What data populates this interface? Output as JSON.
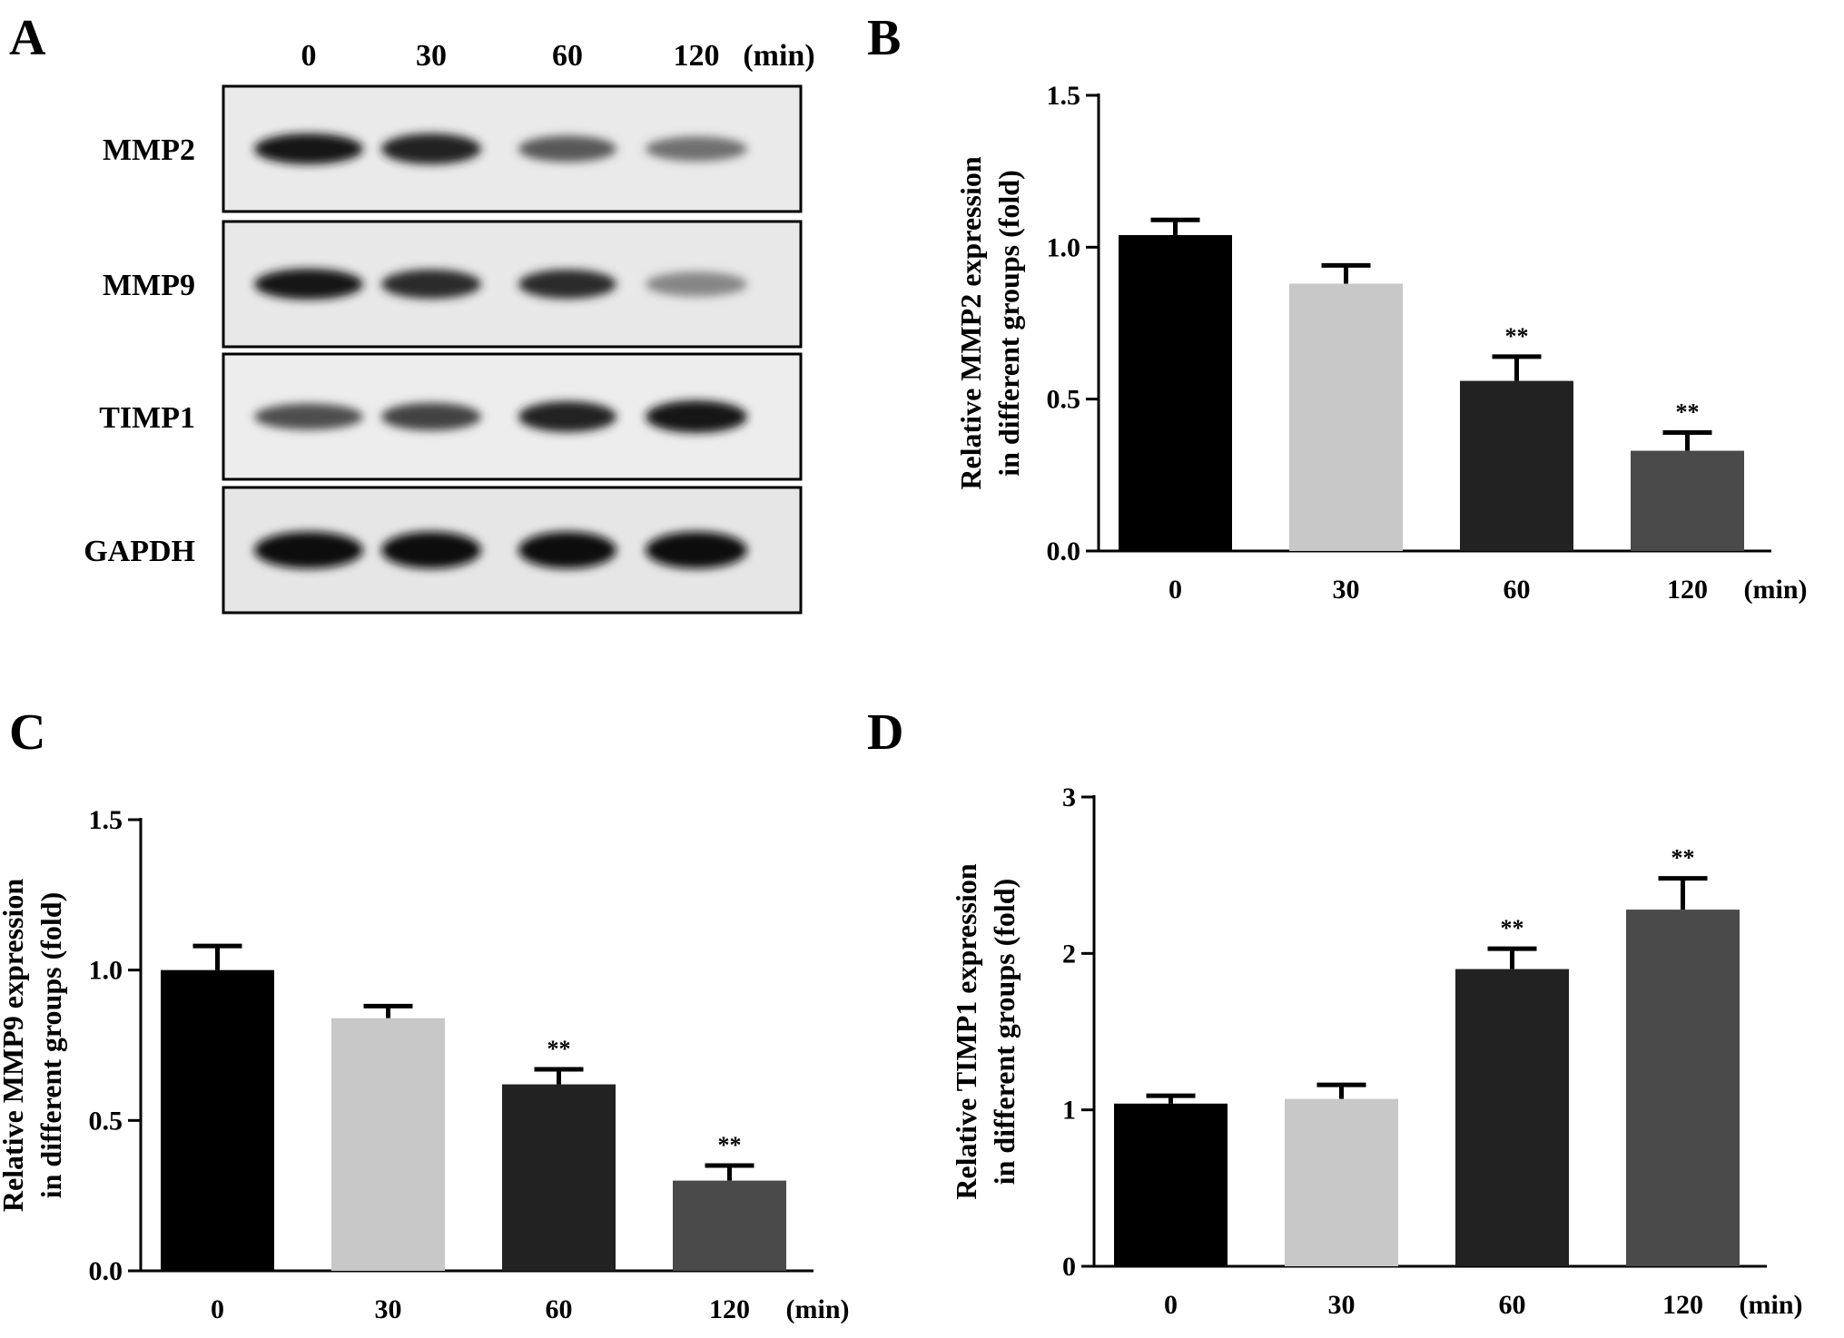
{
  "panels": {
    "A": {
      "letter": "A",
      "lanes": [
        "0",
        "30",
        "60",
        "120"
      ],
      "unit": "(min)",
      "blots": [
        {
          "label": "MMP2",
          "intensity": [
            0.95,
            0.9,
            0.65,
            0.55
          ],
          "thickness": [
            1.0,
            1.0,
            0.85,
            0.8
          ],
          "bg": "#eaeaea"
        },
        {
          "label": "MMP9",
          "intensity": [
            0.95,
            0.85,
            0.85,
            0.45
          ],
          "thickness": [
            1.0,
            0.95,
            0.95,
            0.8
          ],
          "bg": "#e8e8e8"
        },
        {
          "label": "TIMP1",
          "intensity": [
            0.7,
            0.75,
            0.9,
            0.95
          ],
          "thickness": [
            0.85,
            0.9,
            1.0,
            1.05
          ],
          "bg": "#ededed"
        },
        {
          "label": "GAPDH",
          "intensity": [
            0.97,
            0.97,
            0.97,
            0.97
          ],
          "thickness": [
            1.2,
            1.2,
            1.2,
            1.2
          ],
          "bg": "#e6e6e6"
        }
      ]
    },
    "B": {
      "letter": "B"
    },
    "C": {
      "letter": "C"
    },
    "D": {
      "letter": "D"
    }
  },
  "chart_data": [
    {
      "panel": "B",
      "type": "bar",
      "categories": [
        "0",
        "30",
        "60",
        "120"
      ],
      "unit": "(min)",
      "values": [
        1.04,
        0.88,
        0.56,
        0.33
      ],
      "errors": [
        0.05,
        0.06,
        0.08,
        0.06
      ],
      "significance": [
        "",
        "",
        "**",
        "**"
      ],
      "colors": [
        "#000000",
        "#c8c8c8",
        "#222222",
        "#4a4a4a"
      ],
      "ylabel_lines": [
        "Relative MMP2 expression",
        "in different groups (fold)"
      ],
      "ylim": [
        0,
        1.5
      ],
      "yticks": [
        "0.0",
        "0.5",
        "1.0",
        "1.5"
      ],
      "grid": false
    },
    {
      "panel": "C",
      "type": "bar",
      "categories": [
        "0",
        "30",
        "60",
        "120"
      ],
      "unit": "(min)",
      "values": [
        1.0,
        0.84,
        0.62,
        0.3
      ],
      "errors": [
        0.08,
        0.04,
        0.05,
        0.05
      ],
      "significance": [
        "",
        "",
        "**",
        "**"
      ],
      "colors": [
        "#000000",
        "#c8c8c8",
        "#222222",
        "#4a4a4a"
      ],
      "ylabel_lines": [
        "Relative MMP9 expression",
        "in different groups (fold)"
      ],
      "ylim": [
        0,
        1.5
      ],
      "yticks": [
        "0.0",
        "0.5",
        "1.0",
        "1.5"
      ],
      "grid": false
    },
    {
      "panel": "D",
      "type": "bar",
      "categories": [
        "0",
        "30",
        "60",
        "120"
      ],
      "unit": "(min)",
      "values": [
        1.04,
        1.07,
        1.9,
        2.28
      ],
      "errors": [
        0.05,
        0.09,
        0.13,
        0.2
      ],
      "significance": [
        "",
        "",
        "**",
        "**"
      ],
      "colors": [
        "#000000",
        "#c8c8c8",
        "#222222",
        "#4a4a4a"
      ],
      "ylabel_lines": [
        "Relative TIMP1 expression",
        "in different groups (fold)"
      ],
      "ylim": [
        0,
        3
      ],
      "yticks": [
        "0",
        "1",
        "2",
        "3"
      ],
      "grid": false
    }
  ]
}
